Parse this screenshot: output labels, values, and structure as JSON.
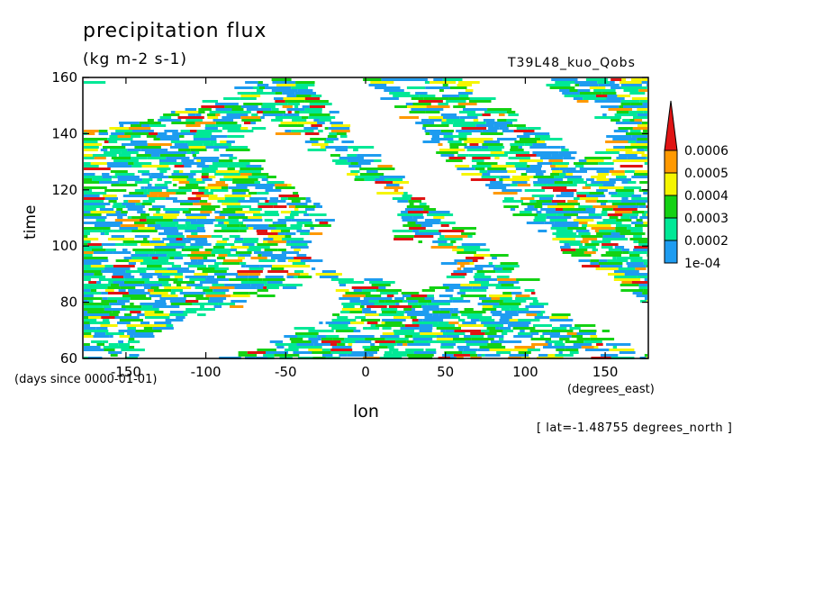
{
  "chart_data": {
    "type": "heatmap",
    "title": "precipitation flux",
    "units": "(kg m-2 s-1)",
    "run_label": "T39L48_kuo_Qobs",
    "xlabel": "lon",
    "x_units": "(degrees_east)",
    "ylabel": "time",
    "y_units": "(days since 0000-01-01)",
    "footnote": "[ lat=-1.48755 degrees_north ]",
    "xlim": [
      -177,
      177
    ],
    "ylim": [
      60,
      160
    ],
    "x_ticks": [
      -150,
      -100,
      -50,
      0,
      50,
      100,
      150
    ],
    "x_tick_labels": [
      "-150",
      "-100",
      "-50",
      "0",
      "50",
      "100",
      "150"
    ],
    "y_ticks": [
      60,
      80,
      100,
      120,
      140,
      160
    ],
    "y_tick_labels": [
      "60",
      "80",
      "100",
      "120",
      "140",
      "160"
    ],
    "colorbar": {
      "levels": [
        0.0001,
        0.0002,
        0.0003,
        0.0004,
        0.0005,
        0.0006
      ],
      "level_labels": [
        "1e-04",
        "0.0002",
        "0.0003",
        "0.0004",
        "0.0005",
        "0.0006"
      ],
      "colors": [
        "#1e9cf0",
        "#00e896",
        "#14d214",
        "#f5f500",
        "#ff9900",
        "#e01414"
      ],
      "extend": "max"
    },
    "dry_bands": [
      {
        "lon_start": -130,
        "time_start": 60,
        "lon_end": -30,
        "time_end": 80
      },
      {
        "lon_start": -170,
        "time_start": 150,
        "lon_end": -90,
        "time_end": 160
      },
      {
        "lon_start": -20,
        "time_start": 160,
        "lon_end": 40,
        "time_end": 125
      },
      {
        "lon_start": 60,
        "time_start": 118,
        "lon_end": 120,
        "time_end": 90
      },
      {
        "lon_start": 80,
        "time_start": 160,
        "lon_end": 140,
        "time_end": 140
      },
      {
        "lon_start": -60,
        "time_start": 135,
        "lon_end": 10,
        "time_end": 110
      },
      {
        "lon_start": 120,
        "time_start": 88,
        "lon_end": 175,
        "time_end": 70
      },
      {
        "lon_start": -20,
        "time_start": 100,
        "lon_end": 40,
        "time_end": 92
      }
    ]
  }
}
